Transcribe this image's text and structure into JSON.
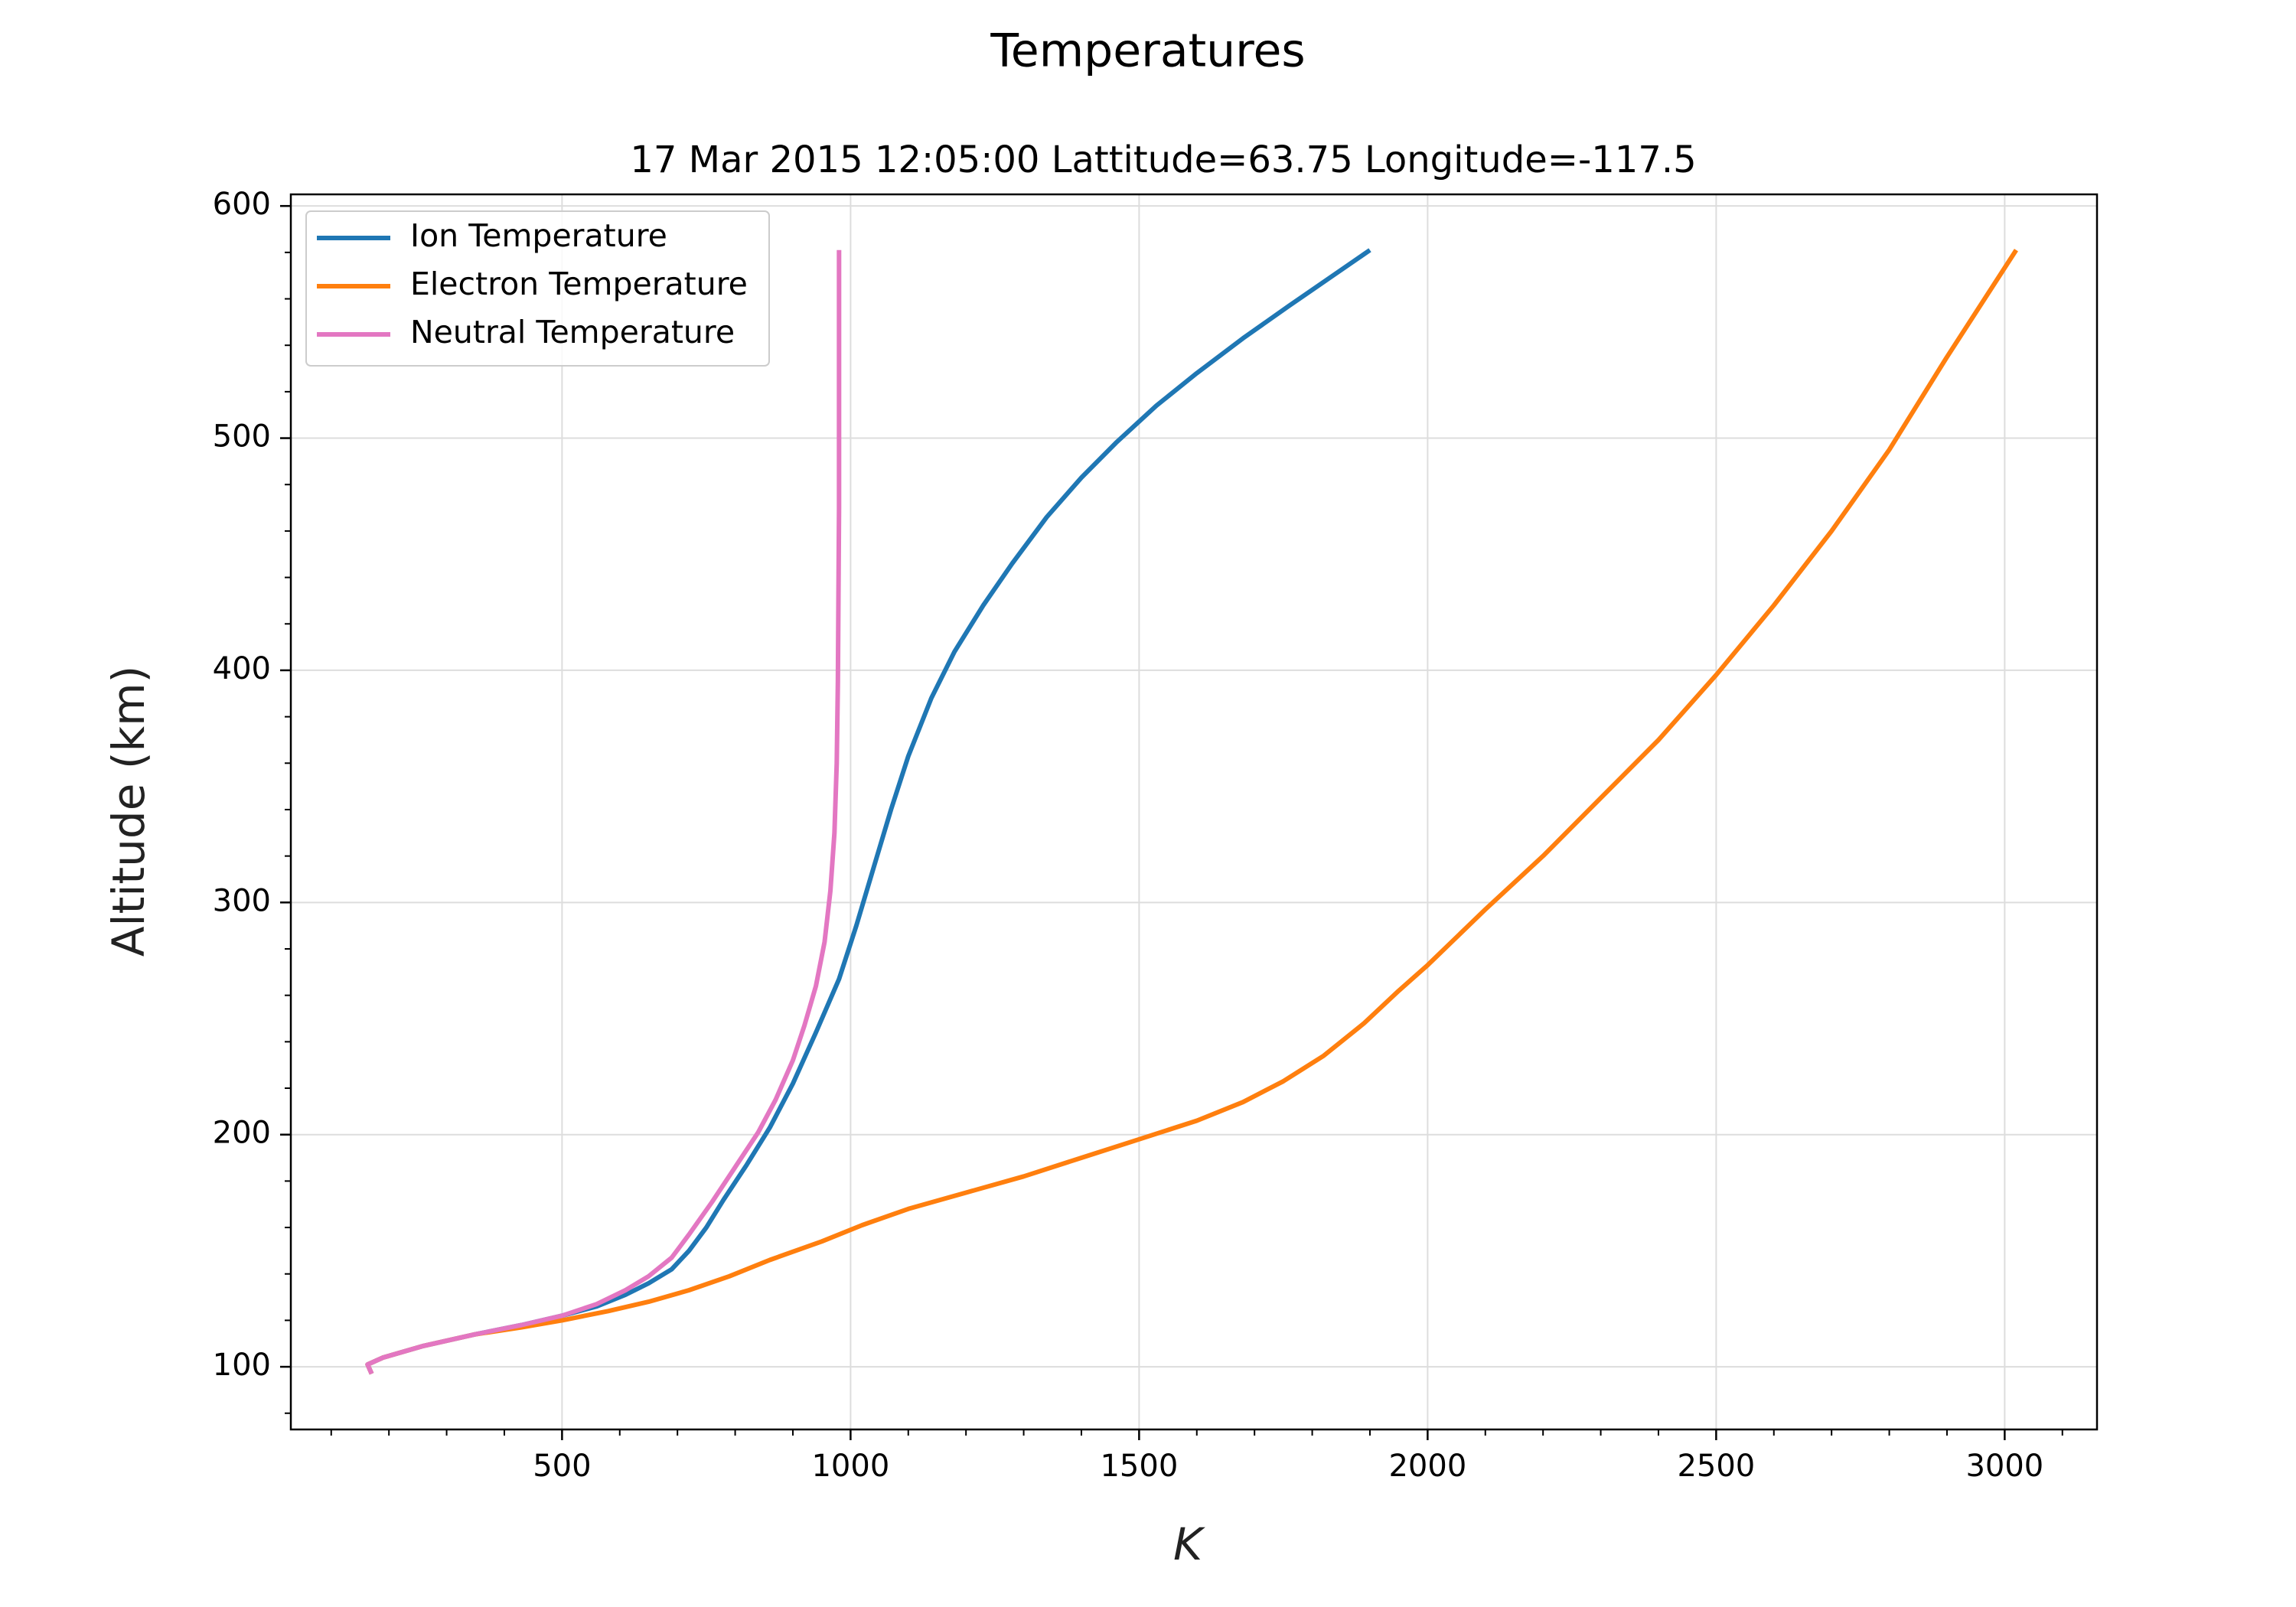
{
  "chart_data": {
    "type": "line",
    "title": "Temperatures",
    "subtitle": "17 Mar 2015 12:05:00 Lattitude=63.75 Longitude=-117.5",
    "xlabel": "K",
    "ylabel": "Altitude (km)",
    "xlim": [
      30,
      3160
    ],
    "ylim": [
      73,
      605
    ],
    "xticks": [
      500,
      1000,
      1500,
      2000,
      2500,
      3000
    ],
    "yticks": [
      100,
      200,
      300,
      400,
      500,
      600
    ],
    "grid": true,
    "legend_position": "top-left",
    "series": [
      {
        "name": "Ion Temperature",
        "color": "#1f77b4",
        "points": [
          [
            170,
            97
          ],
          [
            163,
            101
          ],
          [
            190,
            104
          ],
          [
            260,
            109
          ],
          [
            350,
            114
          ],
          [
            430,
            118
          ],
          [
            500,
            122
          ],
          [
            560,
            126
          ],
          [
            610,
            131
          ],
          [
            650,
            136
          ],
          [
            690,
            142
          ],
          [
            720,
            150
          ],
          [
            750,
            160
          ],
          [
            780,
            172
          ],
          [
            820,
            187
          ],
          [
            860,
            203
          ],
          [
            900,
            222
          ],
          [
            940,
            244
          ],
          [
            980,
            267
          ],
          [
            1010,
            290
          ],
          [
            1040,
            315
          ],
          [
            1070,
            340
          ],
          [
            1100,
            363
          ],
          [
            1140,
            388
          ],
          [
            1180,
            408
          ],
          [
            1230,
            428
          ],
          [
            1280,
            446
          ],
          [
            1340,
            466
          ],
          [
            1400,
            483
          ],
          [
            1460,
            498
          ],
          [
            1530,
            514
          ],
          [
            1600,
            528
          ],
          [
            1680,
            543
          ],
          [
            1760,
            557
          ],
          [
            1830,
            569
          ],
          [
            1900,
            581
          ]
        ]
      },
      {
        "name": "Electron Temperature",
        "color": "#ff7f0e",
        "points": [
          [
            170,
            97
          ],
          [
            163,
            101
          ],
          [
            190,
            104
          ],
          [
            260,
            109
          ],
          [
            350,
            114
          ],
          [
            430,
            117
          ],
          [
            500,
            120
          ],
          [
            580,
            124
          ],
          [
            650,
            128
          ],
          [
            720,
            133
          ],
          [
            790,
            139
          ],
          [
            860,
            146
          ],
          [
            950,
            154
          ],
          [
            1020,
            161
          ],
          [
            1100,
            168
          ],
          [
            1200,
            175
          ],
          [
            1300,
            182
          ],
          [
            1400,
            190
          ],
          [
            1500,
            198
          ],
          [
            1600,
            206
          ],
          [
            1680,
            214
          ],
          [
            1750,
            223
          ],
          [
            1820,
            234
          ],
          [
            1890,
            248
          ],
          [
            1950,
            262
          ],
          [
            2000,
            273
          ],
          [
            2100,
            297
          ],
          [
            2200,
            320
          ],
          [
            2300,
            345
          ],
          [
            2400,
            370
          ],
          [
            2500,
            398
          ],
          [
            2600,
            428
          ],
          [
            2700,
            460
          ],
          [
            2800,
            495
          ],
          [
            2900,
            535
          ],
          [
            3020,
            581
          ]
        ]
      },
      {
        "name": "Neutral Temperature",
        "color": "#e377c2",
        "points": [
          [
            170,
            97
          ],
          [
            163,
            101
          ],
          [
            190,
            104
          ],
          [
            260,
            109
          ],
          [
            350,
            114
          ],
          [
            430,
            118
          ],
          [
            500,
            122
          ],
          [
            560,
            127
          ],
          [
            610,
            133
          ],
          [
            650,
            139
          ],
          [
            690,
            147
          ],
          [
            720,
            157
          ],
          [
            760,
            171
          ],
          [
            800,
            186
          ],
          [
            840,
            201
          ],
          [
            870,
            215
          ],
          [
            900,
            232
          ],
          [
            920,
            247
          ],
          [
            940,
            264
          ],
          [
            955,
            283
          ],
          [
            965,
            305
          ],
          [
            972,
            330
          ],
          [
            976,
            360
          ],
          [
            978,
            395
          ],
          [
            979,
            430
          ],
          [
            980,
            470
          ],
          [
            980,
            510
          ],
          [
            980,
            550
          ],
          [
            980,
            581
          ]
        ]
      }
    ]
  }
}
